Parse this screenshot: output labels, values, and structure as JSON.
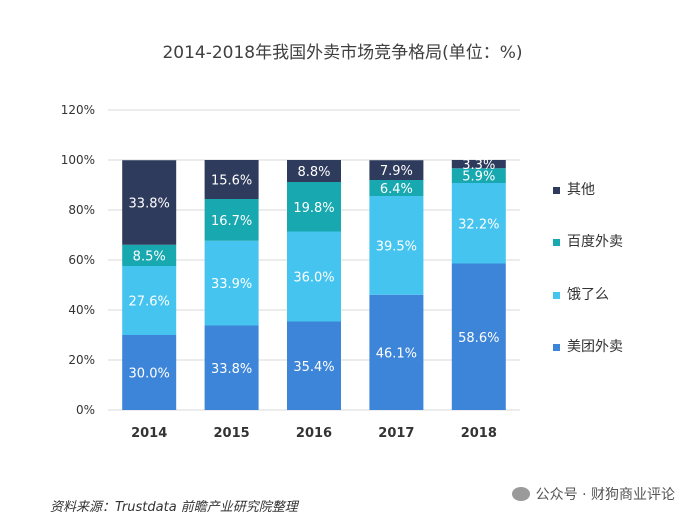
{
  "chart_data": {
    "type": "bar",
    "stacked": true,
    "title": "2014-2018年我国外卖市场竞争格局(单位：%)",
    "categories": [
      "2014",
      "2015",
      "2016",
      "2017",
      "2018"
    ],
    "ylim": [
      0,
      120
    ],
    "yticks": [
      "0%",
      "20%",
      "40%",
      "60%",
      "80%",
      "100%",
      "120%"
    ],
    "legend_position": "right",
    "series": [
      {
        "name": "美团外卖",
        "color": "#3d85d8",
        "values": [
          30.0,
          33.8,
          35.4,
          46.1,
          58.6
        ],
        "labels": [
          "30.0%",
          "33.8%",
          "35.4%",
          "46.1%",
          "58.6%"
        ]
      },
      {
        "name": "饿了么",
        "color": "#45c4f0",
        "values": [
          27.6,
          33.9,
          36.0,
          39.5,
          32.2
        ],
        "labels": [
          "27.6%",
          "33.9%",
          "36.0%",
          "39.5%",
          "32.2%"
        ]
      },
      {
        "name": "百度外卖",
        "color": "#18a8b0",
        "values": [
          8.5,
          16.7,
          19.8,
          6.4,
          5.9
        ],
        "labels": [
          "8.5%",
          "16.7%",
          "19.8%",
          "6.4%",
          "5.9%"
        ]
      },
      {
        "name": "其他",
        "color": "#2e3b5c",
        "values": [
          33.8,
          15.6,
          8.8,
          7.9,
          3.3
        ],
        "labels": [
          "33.8%",
          "15.6%",
          "8.8%",
          "7.9%",
          "3.3%"
        ]
      }
    ]
  },
  "footer": {
    "source": "资料来源：Trustdata 前瞻产业研究院整理",
    "watermark": "公众号 · 财狗商业评论"
  }
}
